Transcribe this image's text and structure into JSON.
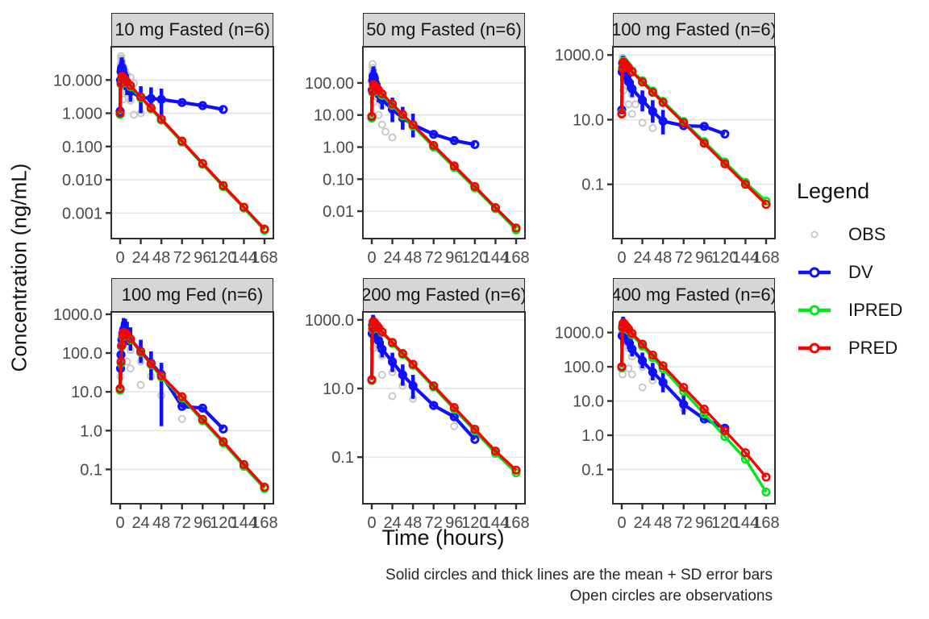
{
  "figure": {
    "y_axis_title": "Concentration (ng/mL)",
    "x_axis_title": "Time (hours)",
    "caption": [
      "Solid circles and thick lines are the mean + SD error bars",
      "Open circles are observations"
    ]
  },
  "legend": {
    "title": "Legend",
    "items": [
      {
        "label": "OBS",
        "type": "point",
        "color": "#c4c4c4"
      },
      {
        "label": "DV",
        "type": "line",
        "color": "#0f0fff"
      },
      {
        "label": "IPRED",
        "type": "line",
        "color": "#00e619"
      },
      {
        "label": "PRED",
        "type": "line",
        "color": "#fa0000"
      }
    ]
  },
  "style": {
    "obs_color": "#c4c4c4",
    "dv_color": "#0f0fff",
    "ipred_color": "#00e619",
    "pred_color": "#fa0000",
    "grid_color": "#e7e7e7",
    "strip_bg": "#d6d6d6",
    "border_color": "#2e2e2e",
    "tick_text_color": "#4a4a4a"
  },
  "chart_data": [
    {
      "title": "10 mg Fasted (n=6)",
      "type": "line",
      "log_y": true,
      "xlim": [
        0,
        168
      ],
      "x_ticks": [
        0,
        24,
        48,
        72,
        96,
        120,
        144,
        168
      ],
      "ylim": [
        0.00017,
        100
      ],
      "y_ticks": [
        {
          "value": 10,
          "label": "10.000"
        },
        {
          "value": 1,
          "label": "1.000"
        },
        {
          "value": 0.1,
          "label": "0.100"
        },
        {
          "value": 0.01,
          "label": "0.010"
        },
        {
          "value": 0.001,
          "label": "0.001"
        }
      ],
      "t_pred": [
        0,
        1,
        2,
        3,
        4,
        6,
        8,
        12,
        24,
        36,
        48,
        72,
        96,
        120,
        144,
        168
      ],
      "pred": [
        1.0,
        8,
        13,
        12.2,
        11.4,
        10,
        8.7,
        6.8,
        3.1,
        1.45,
        0.67,
        0.145,
        0.031,
        0.0067,
        0.0015,
        0.00033
      ],
      "ipred": [
        0.92,
        7.4,
        12.1,
        11.3,
        10.6,
        9.3,
        8.1,
        6.3,
        2.9,
        1.35,
        0.62,
        0.135,
        0.029,
        0.0062,
        0.0014,
        0.0003
      ],
      "t_dv": [
        0,
        0.5,
        1,
        1.5,
        2,
        3,
        4,
        6,
        8,
        12,
        24,
        36,
        48,
        72,
        96,
        120
      ],
      "dv": [
        1.15,
        10,
        18,
        22,
        24,
        20,
        15,
        10,
        7.5,
        4.5,
        3.0,
        2.8,
        2.6,
        2.1,
        1.7,
        1.3
      ],
      "dv_hi": [
        1.15,
        20,
        35,
        45,
        48,
        40,
        30,
        20,
        15,
        9,
        6.5,
        6.0,
        5.5,
        2.1,
        1.7,
        1.3
      ],
      "dv_lo": [
        1.15,
        5,
        9,
        10,
        12,
        10,
        7,
        5,
        3.5,
        2.2,
        1.0,
        1.2,
        0.9,
        2.1,
        1.7,
        1.3
      ],
      "obs_t": [
        0.5,
        1,
        1,
        1.5,
        2,
        2,
        3,
        3,
        4,
        4,
        6,
        8,
        8,
        12,
        12,
        16,
        24,
        16
      ],
      "obs_y": [
        30,
        45,
        52,
        40,
        35,
        28,
        22,
        2.6,
        25,
        12,
        18,
        14,
        4,
        12,
        2.4,
        8,
        1.0,
        0.9
      ]
    },
    {
      "title": "50 mg Fasted (n=6)",
      "type": "line",
      "log_y": true,
      "xlim": [
        0,
        168
      ],
      "x_ticks": [
        0,
        24,
        48,
        72,
        96,
        120,
        144,
        168
      ],
      "ylim": [
        0.0014,
        1350
      ],
      "y_ticks": [
        {
          "value": 100,
          "label": "100.00"
        },
        {
          "value": 10,
          "label": "10.00"
        },
        {
          "value": 1,
          "label": "1.00"
        },
        {
          "value": 0.1,
          "label": "0.10"
        },
        {
          "value": 0.01,
          "label": "0.01"
        }
      ],
      "t_pred": [
        0,
        1,
        2,
        3,
        4,
        6,
        8,
        12,
        24,
        36,
        48,
        72,
        96,
        120,
        144,
        168
      ],
      "pred": [
        9,
        55,
        90,
        85,
        79,
        69,
        60,
        46,
        22,
        10.5,
        5.0,
        1.13,
        0.26,
        0.059,
        0.013,
        0.003
      ],
      "ipred": [
        8,
        50,
        81,
        77,
        71,
        62,
        54,
        41,
        20,
        9.5,
        4.5,
        1.0,
        0.23,
        0.053,
        0.012,
        0.0026
      ],
      "t_dv": [
        0,
        0.5,
        1,
        1.5,
        2,
        3,
        4,
        6,
        8,
        12,
        24,
        36,
        48,
        72,
        96,
        120
      ],
      "dv": [
        9,
        60,
        120,
        160,
        170,
        140,
        100,
        70,
        50,
        30,
        15,
        8,
        5,
        2.5,
        1.6,
        1.2
      ],
      "dv_hi": [
        9,
        120,
        250,
        300,
        330,
        270,
        200,
        140,
        100,
        60,
        35,
        18,
        11,
        2.5,
        1.6,
        1.2
      ],
      "dv_lo": [
        9,
        30,
        60,
        80,
        90,
        70,
        50,
        35,
        25,
        15,
        6,
        3.5,
        2.0,
        2.5,
        1.6,
        1.2
      ],
      "obs_t": [
        0.5,
        1,
        1,
        1.5,
        2,
        2,
        3,
        4,
        4,
        6,
        8,
        8,
        12,
        12,
        16,
        24
      ],
      "obs_y": [
        200,
        300,
        390,
        250,
        160,
        25,
        120,
        90,
        40,
        60,
        30,
        10,
        20,
        5,
        3,
        2
      ]
    },
    {
      "title": "100 mg Fasted (n=6)",
      "type": "line",
      "log_y": true,
      "xlim": [
        0,
        168
      ],
      "x_ticks": [
        0,
        24,
        48,
        72,
        96,
        120,
        144,
        168
      ],
      "ylim": [
        0.0021,
        1800
      ],
      "y_ticks": [
        {
          "value": 1000,
          "label": "1000.0"
        },
        {
          "value": 10,
          "label": "10.0"
        },
        {
          "value": 0.1,
          "label": "0.1"
        }
      ],
      "t_pred": [
        0,
        1,
        2,
        3,
        4,
        6,
        8,
        12,
        24,
        36,
        48,
        72,
        96,
        120,
        144,
        168
      ],
      "pred": [
        15,
        380,
        600,
        560,
        520,
        450,
        390,
        300,
        146,
        70,
        34,
        8,
        1.85,
        0.43,
        0.1,
        0.024
      ],
      "ipred": [
        16,
        420,
        650,
        610,
        560,
        490,
        420,
        325,
        160,
        77,
        37,
        8.8,
        2.1,
        0.49,
        0.115,
        0.03
      ],
      "t_dv": [
        0,
        0.5,
        1,
        1.5,
        2,
        3,
        4,
        6,
        8,
        12,
        24,
        36,
        48,
        72,
        96,
        120
      ],
      "dv": [
        20,
        300,
        550,
        600,
        580,
        450,
        330,
        220,
        150,
        90,
        40,
        18,
        9,
        6.5,
        6.2,
        3.6
      ],
      "dv_hi": [
        20,
        600,
        900,
        950,
        900,
        750,
        550,
        380,
        260,
        160,
        80,
        40,
        20,
        6.5,
        6.2,
        3.6
      ],
      "dv_lo": [
        20,
        150,
        300,
        350,
        330,
        260,
        190,
        130,
        85,
        50,
        18,
        8,
        3.5,
        6.5,
        6.2,
        3.6
      ],
      "obs_t": [
        0.5,
        1,
        1,
        1.5,
        2,
        2,
        3,
        4,
        6,
        8,
        8,
        12,
        12,
        16,
        24,
        36
      ],
      "obs_y": [
        350,
        700,
        820,
        600,
        400,
        80,
        300,
        200,
        150,
        100,
        30,
        60,
        15,
        30,
        8,
        5.5
      ]
    },
    {
      "title": "100 mg Fed (n=6)",
      "type": "line",
      "log_y": true,
      "xlim": [
        0,
        168
      ],
      "x_ticks": [
        0,
        24,
        48,
        72,
        96,
        120,
        144,
        168
      ],
      "ylim": [
        0.013,
        1150
      ],
      "y_ticks": [
        {
          "value": 1000,
          "label": "1000.0"
        },
        {
          "value": 100,
          "label": "100.0"
        },
        {
          "value": 10,
          "label": "10.0"
        },
        {
          "value": 1,
          "label": "1.0"
        },
        {
          "value": 0.1,
          "label": "0.1"
        }
      ],
      "t_pred": [
        0,
        1,
        2,
        3,
        4,
        6,
        8,
        12,
        24,
        36,
        48,
        72,
        96,
        120,
        144,
        168
      ],
      "pred": [
        12,
        60,
        160,
        280,
        340,
        330,
        300,
        230,
        110,
        53,
        26,
        7.5,
        1.96,
        0.52,
        0.134,
        0.035
      ],
      "ipred": [
        11,
        55,
        150,
        265,
        325,
        315,
        285,
        220,
        104,
        50,
        24,
        7.0,
        1.8,
        0.48,
        0.12,
        0.032
      ],
      "t_dv": [
        0,
        0.5,
        1,
        1.5,
        2,
        3,
        4,
        6,
        8,
        12,
        24,
        36,
        48,
        72,
        96,
        120
      ],
      "dv": [
        12,
        40,
        90,
        150,
        220,
        320,
        400,
        380,
        320,
        230,
        110,
        55,
        28,
        4.2,
        3.8,
        1.1
      ],
      "dv_hi": [
        12,
        80,
        180,
        300,
        440,
        640,
        800,
        760,
        640,
        460,
        220,
        110,
        56,
        4.2,
        3.8,
        1.1
      ],
      "dv_lo": [
        12,
        20,
        45,
        75,
        110,
        160,
        200,
        190,
        160,
        115,
        55,
        20,
        1.3,
        4.2,
        3.8,
        1.1
      ],
      "obs_t": [
        0.5,
        1,
        2,
        3,
        4,
        4,
        6,
        8,
        8,
        12,
        12,
        24,
        24,
        36,
        48,
        72
      ],
      "obs_y": [
        25,
        60,
        150,
        250,
        300,
        490,
        280,
        200,
        60,
        120,
        40,
        60,
        15,
        25,
        8,
        2
      ]
    },
    {
      "title": "200 mg Fasted (n=6)",
      "type": "line",
      "log_y": true,
      "xlim": [
        0,
        168
      ],
      "x_ticks": [
        0,
        24,
        48,
        72,
        96,
        120,
        144,
        168
      ],
      "ylim": [
        0.0044,
        1700
      ],
      "y_ticks": [
        {
          "value": 1000,
          "label": "1000.0"
        },
        {
          "value": 10,
          "label": "10.0"
        },
        {
          "value": 0.1,
          "label": "0.1"
        }
      ],
      "t_pred": [
        0,
        1,
        2,
        3,
        4,
        6,
        8,
        12,
        24,
        36,
        48,
        72,
        96,
        120,
        144,
        168
      ],
      "pred": [
        18,
        570,
        900,
        840,
        780,
        680,
        590,
        450,
        220,
        105,
        51,
        12,
        2.8,
        0.65,
        0.15,
        0.042
      ],
      "ipred": [
        17,
        530,
        840,
        790,
        730,
        640,
        550,
        420,
        205,
        97,
        47,
        11,
        2.5,
        0.58,
        0.13,
        0.035
      ],
      "t_dv": [
        0,
        0.5,
        1,
        1.5,
        2,
        3,
        4,
        6,
        8,
        12,
        24,
        36,
        48,
        72,
        96,
        120
      ],
      "dv": [
        18,
        400,
        700,
        850,
        800,
        650,
        500,
        350,
        250,
        140,
        60,
        25,
        12,
        3.2,
        1.5,
        0.33
      ],
      "dv_hi": [
        18,
        800,
        1200,
        1400,
        1300,
        1100,
        850,
        600,
        420,
        240,
        110,
        50,
        25,
        3.2,
        1.5,
        0.33
      ],
      "dv_lo": [
        18,
        200,
        400,
        480,
        460,
        380,
        290,
        200,
        145,
        80,
        30,
        12,
        5,
        3.2,
        1.5,
        0.33
      ],
      "obs_t": [
        0.5,
        1,
        1.5,
        2,
        2,
        3,
        4,
        6,
        8,
        12,
        12,
        24,
        24,
        36,
        48,
        96
      ],
      "obs_y": [
        500,
        900,
        800,
        600,
        150,
        500,
        350,
        250,
        150,
        90,
        25,
        30,
        6,
        12,
        5,
        0.8
      ]
    },
    {
      "title": "400 mg Fasted (n=6)",
      "type": "line",
      "log_y": true,
      "xlim": [
        0,
        168
      ],
      "x_ticks": [
        0,
        24,
        48,
        72,
        96,
        120,
        144,
        168
      ],
      "ylim": [
        0.01,
        4000
      ],
      "y_ticks": [
        {
          "value": 1000,
          "label": "1000.0"
        },
        {
          "value": 100,
          "label": "100.0"
        },
        {
          "value": 10,
          "label": "10.0"
        },
        {
          "value": 1,
          "label": "1.0"
        },
        {
          "value": 0.1,
          "label": "0.1"
        }
      ],
      "t_pred": [
        0,
        1,
        2,
        3,
        4,
        6,
        8,
        12,
        24,
        36,
        48,
        72,
        96,
        120,
        144,
        168
      ],
      "pred": [
        100,
        1400,
        1900,
        1800,
        1650,
        1450,
        1250,
        950,
        460,
        220,
        107,
        25,
        5.8,
        1.35,
        0.31,
        0.06
      ],
      "ipred": [
        92,
        1300,
        1750,
        1660,
        1520,
        1330,
        1140,
        860,
        400,
        185,
        88,
        19,
        4.2,
        0.92,
        0.2,
        0.022
      ],
      "t_dv": [
        0,
        0.5,
        1,
        1.5,
        2,
        3,
        4,
        6,
        8,
        12,
        24,
        36,
        48,
        72,
        96,
        120
      ],
      "dv": [
        100,
        800,
        1500,
        1800,
        1700,
        1400,
        1100,
        800,
        550,
        330,
        150,
        70,
        35,
        8,
        3.0,
        1.6
      ],
      "dv_hi": [
        100,
        1600,
        2500,
        2900,
        2700,
        2300,
        1800,
        1300,
        900,
        550,
        260,
        130,
        65,
        15,
        3.0,
        1.6
      ],
      "dv_lo": [
        100,
        400,
        900,
        1100,
        1000,
        850,
        650,
        480,
        330,
        200,
        90,
        40,
        18,
        4,
        3.0,
        1.6
      ],
      "obs_t": [
        0.5,
        1,
        1,
        1.5,
        2,
        3,
        4,
        6,
        8,
        8,
        12,
        12,
        24,
        24,
        36,
        72
      ],
      "obs_y": [
        1000,
        2000,
        60,
        1500,
        1200,
        900,
        700,
        500,
        350,
        90,
        200,
        60,
        100,
        25,
        40,
        6
      ]
    }
  ]
}
